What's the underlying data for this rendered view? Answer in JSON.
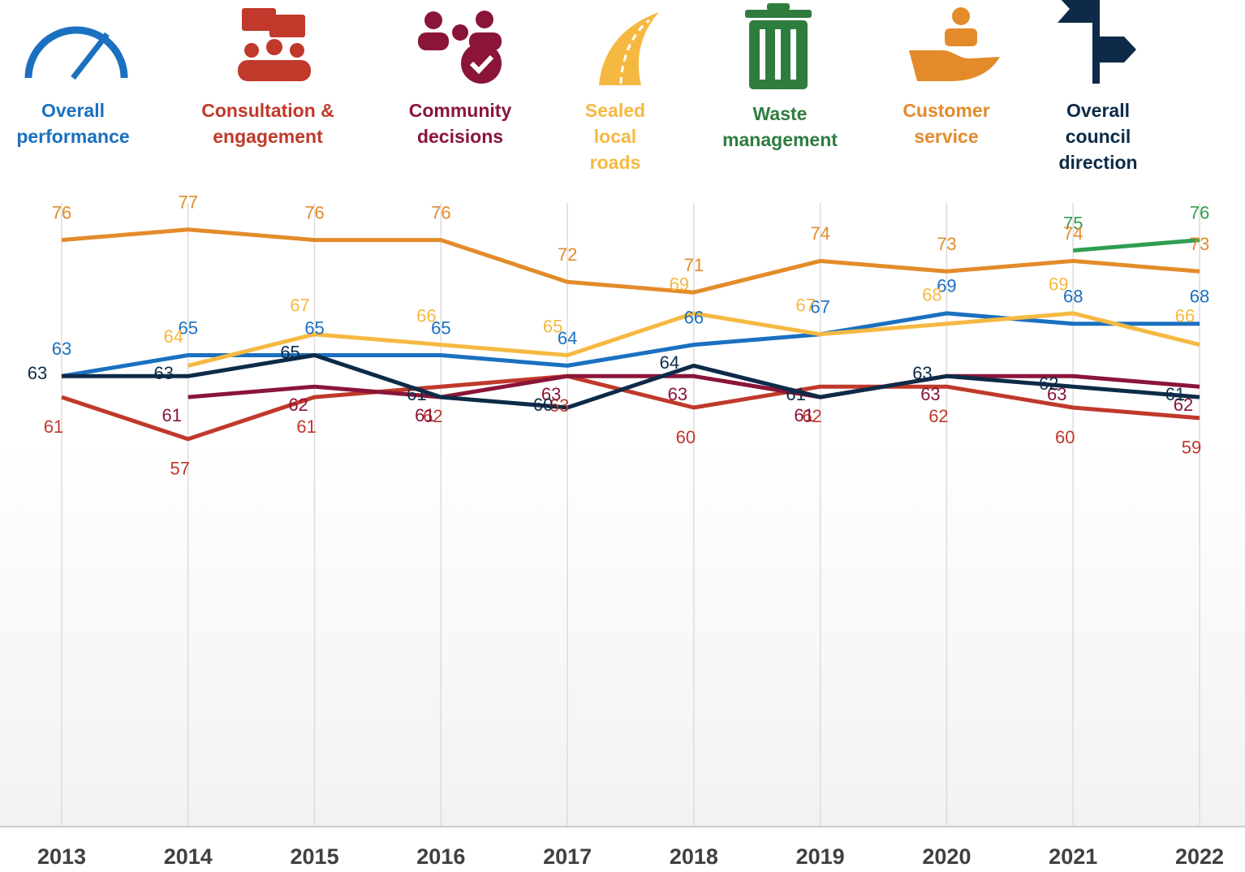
{
  "chart_data": {
    "type": "line",
    "categories": [
      "2013",
      "2014",
      "2015",
      "2016",
      "2017",
      "2018",
      "2019",
      "2020",
      "2021",
      "2022"
    ],
    "ylim": [
      20,
      80
    ],
    "grid": "x",
    "series": [
      {
        "name": "Overall performance",
        "color": "#1b70c0",
        "values": [
          63,
          65,
          65,
          65,
          64,
          66,
          67,
          69,
          68,
          68
        ]
      },
      {
        "name": "Consultation & engagement",
        "color": "#c0392b",
        "values": [
          61,
          57,
          61,
          62,
          63,
          60,
          62,
          62,
          60,
          59
        ]
      },
      {
        "name": "Community decisions",
        "color": "#8a1538",
        "values": [
          null,
          61,
          62,
          61,
          63,
          63,
          61,
          63,
          63,
          62
        ]
      },
      {
        "name": "Sealed local roads",
        "color": "#f5b942",
        "values": [
          null,
          64,
          67,
          66,
          65,
          69,
          67,
          68,
          69,
          66
        ]
      },
      {
        "name": "Waste management",
        "color": "#2e9e4f",
        "values": [
          null,
          null,
          null,
          null,
          null,
          null,
          null,
          null,
          75,
          76
        ]
      },
      {
        "name": "Customer service",
        "color": "#e38b2b",
        "values": [
          76,
          77,
          76,
          76,
          72,
          71,
          74,
          73,
          74,
          73
        ]
      },
      {
        "name": "Overall council direction",
        "color": "#0d2b48",
        "values": [
          63,
          63,
          65,
          61,
          60,
          64,
          61,
          63,
          62,
          61
        ]
      }
    ]
  }
}
